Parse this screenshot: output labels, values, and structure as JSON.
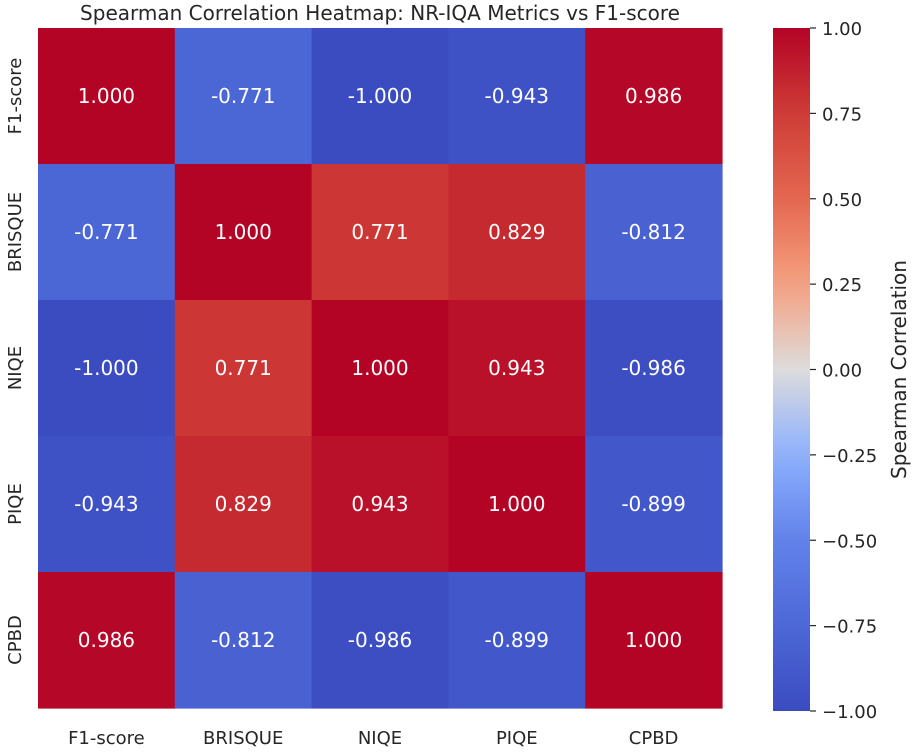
{
  "chart_data": {
    "type": "heatmap",
    "title": "Spearman Correlation Heatmap: NR-IQA Metrics vs F1-score",
    "x_categories": [
      "F1-score",
      "BRISQUE",
      "NIQE",
      "PIQE",
      "CPBD"
    ],
    "y_categories": [
      "F1-score",
      "BRISQUE",
      "NIQE",
      "PIQE",
      "CPBD"
    ],
    "cell_labels": [
      [
        "1.000",
        "-0.771",
        "-1.000",
        "-0.943",
        "0.986"
      ],
      [
        "-0.771",
        "1.000",
        "0.771",
        "0.829",
        "-0.812"
      ],
      [
        "-1.000",
        "0.771",
        "1.000",
        "0.943",
        "-0.986"
      ],
      [
        "-0.943",
        "0.829",
        "0.943",
        "1.000",
        "-0.899"
      ],
      [
        "0.986",
        "-0.812",
        "-0.986",
        "-0.899",
        "1.000"
      ]
    ],
    "values": [
      [
        1.0,
        -0.771,
        -1.0,
        -0.943,
        0.986
      ],
      [
        -0.771,
        1.0,
        0.771,
        0.829,
        -0.812
      ],
      [
        -1.0,
        0.771,
        1.0,
        0.943,
        -0.986
      ],
      [
        -0.943,
        0.829,
        0.943,
        1.0,
        -0.899
      ],
      [
        0.986,
        -0.812,
        -0.986,
        -0.899,
        1.0
      ]
    ],
    "colormap": "coolwarm",
    "vmin": -1.0,
    "vmax": 1.0,
    "colorbar": {
      "label": "Spearman Correlation",
      "ticks": [
        1.0,
        0.75,
        0.5,
        0.25,
        0.0,
        -0.25,
        -0.5,
        -0.75,
        -1.0
      ],
      "tick_labels": [
        "1.00",
        "0.75",
        "0.50",
        "0.25",
        "0.00",
        "−0.25",
        "−0.50",
        "−0.75",
        "−1.00"
      ]
    },
    "text_color": "#ffffff",
    "label_color": "#262626"
  }
}
